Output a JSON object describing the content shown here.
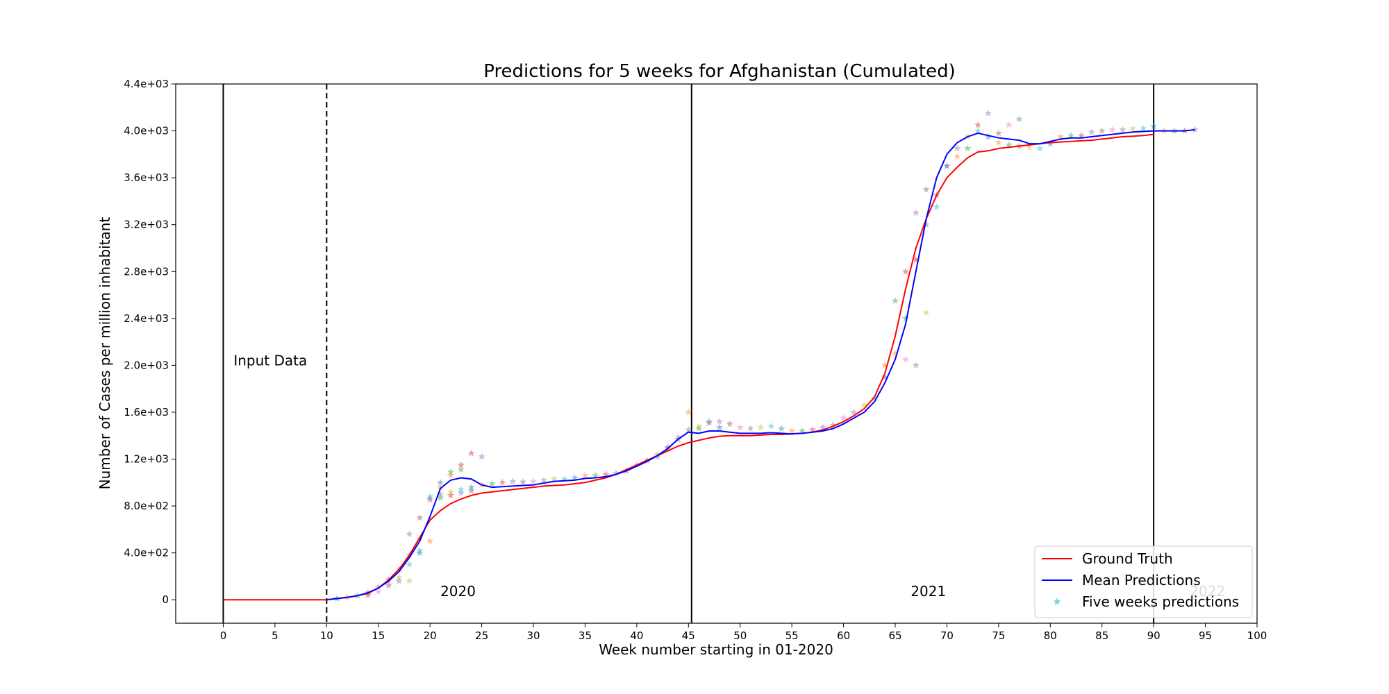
{
  "chart_data": {
    "type": "line",
    "title": "Predictions for 5 weeks for Afghanistan (Cumulated)",
    "xlabel": "Week number starting in 01-2020",
    "ylabel": "Number of Cases per million inhabitant",
    "xlim": [
      -4.6,
      100
    ],
    "ylim": [
      -200,
      4400
    ],
    "xticks": [
      0,
      5,
      10,
      15,
      20,
      25,
      30,
      35,
      40,
      45,
      50,
      55,
      60,
      65,
      70,
      75,
      80,
      85,
      90,
      95,
      100
    ],
    "yticks": [
      {
        "value": 0,
        "label": "0"
      },
      {
        "value": 400,
        "label": "4.0e+02"
      },
      {
        "value": 800,
        "label": "8.0e+02"
      },
      {
        "value": 1200,
        "label": "1.2e+03"
      },
      {
        "value": 1600,
        "label": "1.6e+03"
      },
      {
        "value": 2000,
        "label": "2.0e+03"
      },
      {
        "value": 2400,
        "label": "2.4e+03"
      },
      {
        "value": 2800,
        "label": "2.8e+03"
      },
      {
        "value": 3200,
        "label": "3.2e+03"
      },
      {
        "value": 3600,
        "label": "3.6e+03"
      },
      {
        "value": 4000,
        "label": "4.0e+03"
      },
      {
        "value": 4400,
        "label": "4.4e+03"
      }
    ],
    "grid": false,
    "legend_position": "bottom-right",
    "vertical_lines": [
      {
        "x": 0,
        "style": "solid"
      },
      {
        "x": 10,
        "style": "dashed"
      },
      {
        "x": 45.3,
        "style": "solid"
      },
      {
        "x": 90,
        "style": "solid"
      }
    ],
    "annotations": [
      {
        "text": "Input Data",
        "x": 1,
        "y": 2000
      },
      {
        "text": "2020",
        "x": 21,
        "y": 30
      },
      {
        "text": "2021",
        "x": 66.5,
        "y": 30
      },
      {
        "text": "2022",
        "x": 93.5,
        "y": 30,
        "faded": true
      }
    ],
    "series": [
      {
        "name": "Ground Truth",
        "color": "#ff0000",
        "x": [
          0,
          1,
          2,
          3,
          4,
          5,
          6,
          7,
          8,
          9,
          10,
          11,
          12,
          13,
          14,
          15,
          16,
          17,
          18,
          19,
          20,
          21,
          22,
          23,
          24,
          25,
          26,
          27,
          28,
          29,
          30,
          31,
          32,
          33,
          34,
          35,
          36,
          37,
          38,
          39,
          40,
          41,
          42,
          43,
          44,
          45,
          46,
          47,
          48,
          49,
          50,
          51,
          52,
          53,
          54,
          55,
          56,
          57,
          58,
          59,
          60,
          61,
          62,
          63,
          64,
          65,
          66,
          67,
          68,
          69,
          70,
          71,
          72,
          73,
          74,
          75,
          76,
          77,
          78,
          79,
          80,
          81,
          82,
          83,
          84,
          85,
          86,
          87,
          88,
          89,
          90
        ],
        "values": [
          0,
          0,
          0,
          0,
          0,
          0,
          0,
          0,
          0,
          0,
          0,
          10,
          20,
          35,
          55,
          100,
          170,
          260,
          380,
          530,
          680,
          760,
          820,
          860,
          890,
          910,
          920,
          930,
          940,
          950,
          960,
          970,
          975,
          980,
          990,
          1000,
          1020,
          1040,
          1070,
          1110,
          1150,
          1190,
          1230,
          1270,
          1310,
          1340,
          1360,
          1380,
          1395,
          1400,
          1400,
          1400,
          1405,
          1410,
          1410,
          1415,
          1420,
          1430,
          1450,
          1480,
          1520,
          1570,
          1630,
          1730,
          1930,
          2250,
          2650,
          3000,
          3250,
          3450,
          3600,
          3690,
          3770,
          3820,
          3830,
          3850,
          3860,
          3870,
          3880,
          3890,
          3900,
          3905,
          3910,
          3915,
          3920,
          3930,
          3940,
          3950,
          3955,
          3960,
          3970
        ]
      },
      {
        "name": "Mean Predictions",
        "color": "#0000ff",
        "x": [
          10,
          11,
          12,
          13,
          14,
          15,
          16,
          17,
          18,
          19,
          20,
          21,
          22,
          23,
          24,
          25,
          26,
          27,
          28,
          29,
          30,
          31,
          32,
          33,
          34,
          35,
          36,
          37,
          38,
          39,
          40,
          41,
          42,
          43,
          44,
          45,
          46,
          47,
          48,
          49,
          50,
          51,
          52,
          53,
          54,
          55,
          56,
          57,
          58,
          59,
          60,
          61,
          62,
          63,
          64,
          65,
          66,
          67,
          68,
          69,
          70,
          71,
          72,
          73,
          74,
          75,
          76,
          77,
          78,
          79,
          80,
          81,
          82,
          83,
          84,
          85,
          86,
          87,
          88,
          89,
          90,
          91,
          92,
          93,
          94
        ],
        "values": [
          0,
          10,
          20,
          35,
          60,
          100,
          160,
          240,
          360,
          500,
          710,
          950,
          1020,
          1040,
          1030,
          980,
          960,
          965,
          970,
          975,
          980,
          995,
          1010,
          1015,
          1020,
          1035,
          1040,
          1050,
          1070,
          1100,
          1140,
          1180,
          1230,
          1290,
          1370,
          1430,
          1420,
          1440,
          1440,
          1430,
          1420,
          1420,
          1420,
          1425,
          1420,
          1415,
          1420,
          1430,
          1440,
          1460,
          1500,
          1550,
          1600,
          1690,
          1850,
          2050,
          2350,
          2800,
          3250,
          3600,
          3800,
          3900,
          3950,
          3980,
          3960,
          3940,
          3930,
          3920,
          3890,
          3890,
          3910,
          3930,
          3940,
          3940,
          3950,
          3960,
          3970,
          3980,
          3990,
          3995,
          4000,
          4000,
          4000,
          4000,
          4010
        ]
      },
      {
        "name": "Five weeks predictions",
        "type": "scatter",
        "marker": "star",
        "colors": [
          "#1f77b4",
          "#ff7f0e",
          "#2ca02c",
          "#d62728",
          "#9467bd",
          "#8c564b",
          "#e377c2",
          "#7f7f7f",
          "#bcbd22",
          "#17becf"
        ],
        "x": [
          11,
          12,
          13,
          14,
          15,
          16,
          17,
          18,
          19,
          20,
          21,
          22,
          23,
          24,
          25,
          14,
          15,
          16,
          17,
          18,
          19,
          20,
          21,
          22,
          23,
          24,
          16,
          17,
          18,
          19,
          20,
          21,
          22,
          23,
          18,
          19,
          20,
          21,
          22,
          23,
          24,
          25,
          26,
          27,
          28,
          29,
          30,
          31,
          32,
          33,
          34,
          35,
          36,
          37,
          38,
          39,
          40,
          41,
          42,
          43,
          44,
          45,
          46,
          47,
          48,
          49,
          50,
          51,
          52,
          53,
          54,
          55,
          56,
          57,
          58,
          59,
          60,
          61,
          62,
          63,
          64,
          65,
          66,
          67,
          68,
          69,
          70,
          71,
          72,
          73,
          74,
          75,
          76,
          77,
          42,
          43,
          44,
          45,
          46,
          47,
          48,
          64,
          65,
          66,
          67,
          68,
          66,
          67,
          68,
          69,
          70,
          71,
          72,
          73,
          74,
          75,
          76,
          77,
          78,
          79,
          80,
          81,
          82,
          83,
          84,
          85,
          86,
          87,
          88,
          89,
          90,
          91,
          92,
          93,
          94
        ],
        "values": [
          10,
          20,
          35,
          60,
          110,
          170,
          260,
          380,
          520,
          880,
          1000,
          1060,
          1110,
          1250,
          1220,
          40,
          70,
          120,
          190,
          300,
          400,
          500,
          870,
          890,
          910,
          930,
          130,
          160,
          160,
          420,
          860,
          960,
          1090,
          1150,
          560,
          700,
          850,
          900,
          920,
          940,
          960,
          980,
          990,
          1000,
          1010,
          1005,
          1010,
          1020,
          1030,
          1030,
          1040,
          1060,
          1060,
          1070,
          1080,
          1100,
          1150,
          1190,
          1240,
          1290,
          1370,
          1600,
          1460,
          1510,
          1520,
          1500,
          1470,
          1460,
          1470,
          1480,
          1460,
          1440,
          1440,
          1450,
          1470,
          1490,
          1550,
          1600,
          1660,
          1720,
          1900,
          2100,
          2400,
          2900,
          3200,
          3450,
          3700,
          3850,
          3950,
          4000,
          3950,
          3900,
          3880,
          3870,
          1220,
          1300,
          1390,
          1450,
          1480,
          1520,
          1470,
          2000,
          2550,
          2800,
          3300,
          3500,
          2050,
          2000,
          2450,
          3350,
          3700,
          3780,
          3850,
          4050,
          4150,
          3980,
          4050,
          4100,
          3860,
          3850,
          3890,
          3950,
          3960,
          3960,
          3990,
          4000,
          4010,
          4010,
          4020,
          4020,
          4040,
          4000,
          4000,
          4000,
          4010
        ]
      }
    ]
  }
}
